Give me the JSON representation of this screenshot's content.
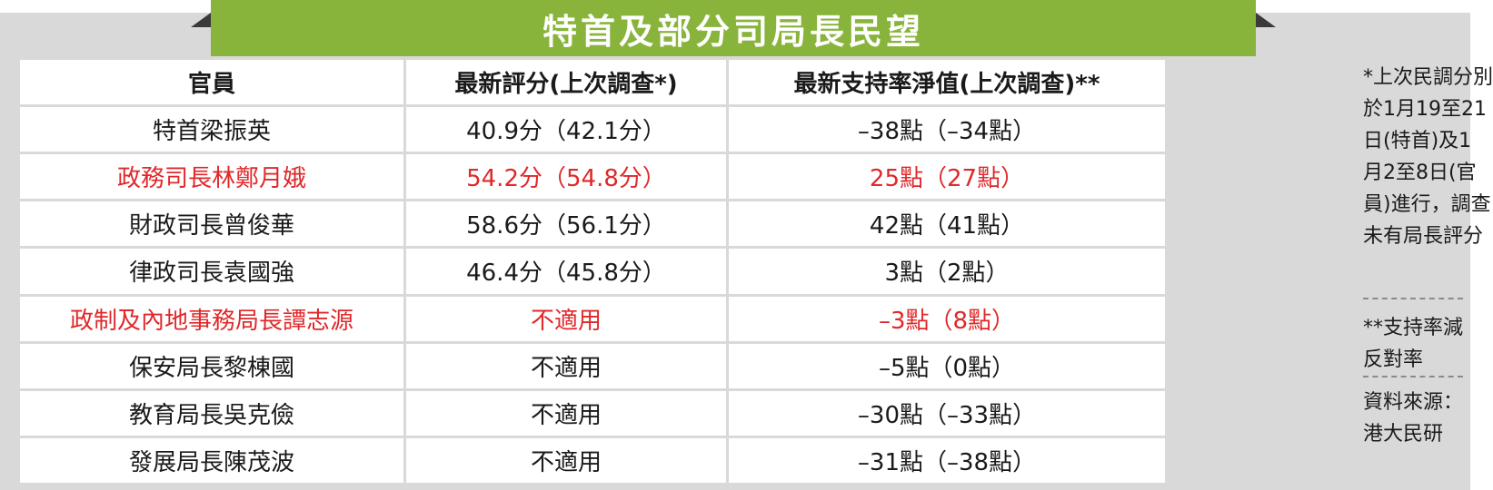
{
  "title": "特首及部分司局長民望",
  "headers": [
    "官員",
    "最新評分(上次調查*)",
    "最新支持率淨值(上次調查)**"
  ],
  "rows": [
    {
      "name": "特首梁振英",
      "score": "40.9分（42.1分）",
      "net": "–38點（–34點）"
    },
    {
      "name": "政務司長林鄭月娥",
      "score": "54.2分（54.8分）",
      "net": "25點（27點）"
    },
    {
      "name": "財政司長曾俊華",
      "score": "58.6分（56.1分）",
      "net": "42點（41點）"
    },
    {
      "name": "律政司長袁國強",
      "score": "46.4分（45.8分）",
      "net": "3點（2點）"
    },
    {
      "name": "政制及內地事務局長譚志源",
      "score": "不適用",
      "net": "–3點（8點）"
    },
    {
      "name": "保安局長黎棟國",
      "score": "不適用",
      "net": "–5點（0點）"
    },
    {
      "name": "教育局長吳克儉",
      "score": "不適用",
      "net": "–30點（–33點）"
    },
    {
      "name": "發展局長陳茂波",
      "score": "不適用",
      "net": "–31點（–38點）"
    }
  ],
  "notes": {
    "survey_dates": "*上次民調分別\n於1月19至21\n日(特首)及1\n月2至8日(官\n員)進行，調查\n未有局長評分",
    "net_definition": "**支持率減\n反對率",
    "source": "資料來源：\n港大民研"
  },
  "colors": {
    "title_bar": "#88b43b",
    "frame": "#d9d9d9",
    "highlight": "#e0282a"
  }
}
